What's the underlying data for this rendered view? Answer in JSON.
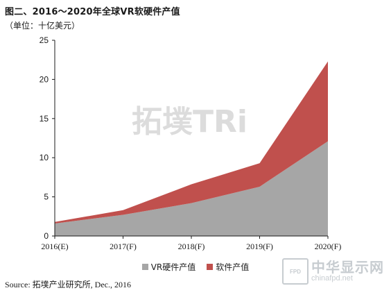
{
  "header": {
    "title": "图二、2016～2020年全球VR软硬件产值",
    "unit": "（单位：十亿美元）"
  },
  "chart_data": {
    "type": "area",
    "stacked": true,
    "categories": [
      "2016(E)",
      "2017(F)",
      "2018(F)",
      "2019(F)",
      "2020(F)"
    ],
    "series": [
      {
        "name": "VR硬件产值",
        "values": [
          1.6,
          2.7,
          4.2,
          6.3,
          12.1
        ],
        "color": "#a6a6a6"
      },
      {
        "name": "软件产值",
        "values": [
          0.2,
          0.6,
          2.4,
          3.0,
          10.2
        ],
        "color": "#c0504d"
      }
    ],
    "ylim": [
      0,
      25
    ],
    "yticks": [
      0,
      5,
      10,
      15,
      20,
      25
    ],
    "legend_position": "bottom"
  },
  "watermark": {
    "text": "拓墣TRi"
  },
  "source": "Source: 拓墣产业研究所, Dec., 2016",
  "logo": {
    "box_text": "FPD",
    "name": "中华显示网",
    "url": "chinafpd.net"
  }
}
